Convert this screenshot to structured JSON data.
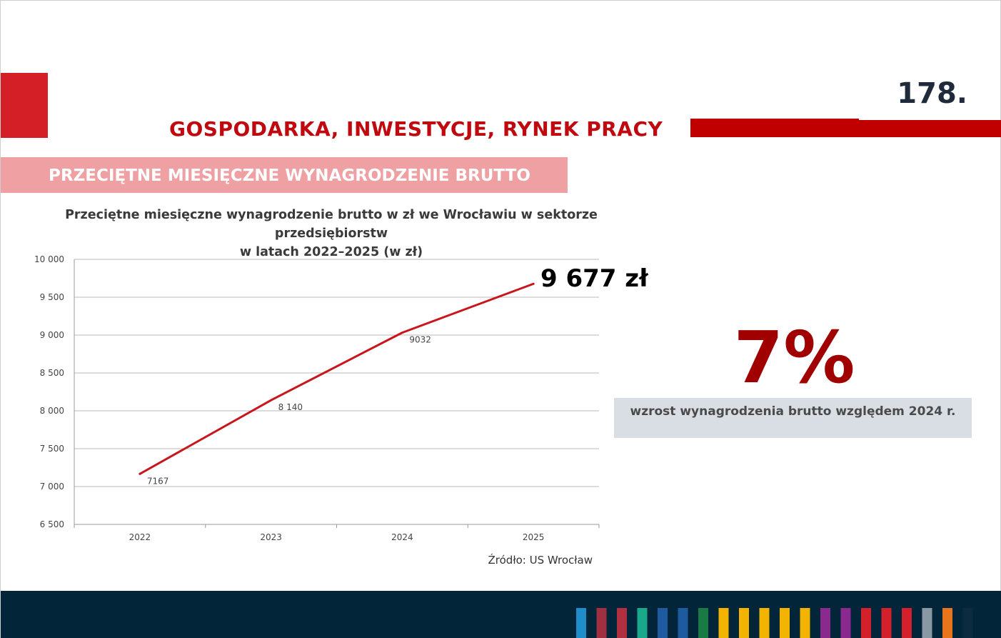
{
  "header": {
    "page_number": "178.",
    "section_title": "GOSPODARKA, INWESTYCJE, RYNEK PRACY",
    "subtitle": "PRZECIĘTNE MIESIĘCZNE WYNAGRODZENIE BRUTTO"
  },
  "chart_title": {
    "line1": "Przeciętne miesięczne wynagrodzenie brutto w zł we Wrocławiu w sektorze przedsiębiorstw",
    "line2": "w latach 2022–2025 (w zł)"
  },
  "highlight": {
    "value": "9 677 zł",
    "percent": "7%",
    "percent_description": "wzrost wynagrodzenia brutto względem 2024 r."
  },
  "source": "Źródło: US Wrocław",
  "colors": {
    "line": "#c8161d",
    "accent_red": "#c00000",
    "footer": "#02253a"
  },
  "chart_data": {
    "type": "line",
    "categories": [
      "2022",
      "2023",
      "2024",
      "2025"
    ],
    "series": [
      {
        "values": [
          7167,
          8140,
          9032,
          9677
        ]
      }
    ],
    "data_labels": [
      "7167",
      "8 140",
      "9032",
      ""
    ],
    "ylim": [
      6500,
      10000
    ],
    "y_ticks": [
      6500,
      7000,
      7500,
      8000,
      8500,
      9000,
      9500,
      10000
    ],
    "y_tick_labels": [
      "6 500",
      "7 000",
      "7 500",
      "8 000",
      "8 500",
      "9 000",
      "9 500",
      "10 000"
    ],
    "grid": true
  },
  "footer": {
    "stripe_colors": [
      "#1f8dc9",
      "#a03040",
      "#b03040",
      "#1aa88a",
      "#1d5aa0",
      "#1d5aa0",
      "#1a7a45",
      "#f2b400",
      "#f2b400",
      "#f2b400",
      "#f2b400",
      "#f2b400",
      "#8a2a8f",
      "#8a2a8f",
      "#d4202a",
      "#d4202a",
      "#d4202a",
      "#8a98a4",
      "#e8741c",
      "#0c2a40"
    ]
  }
}
